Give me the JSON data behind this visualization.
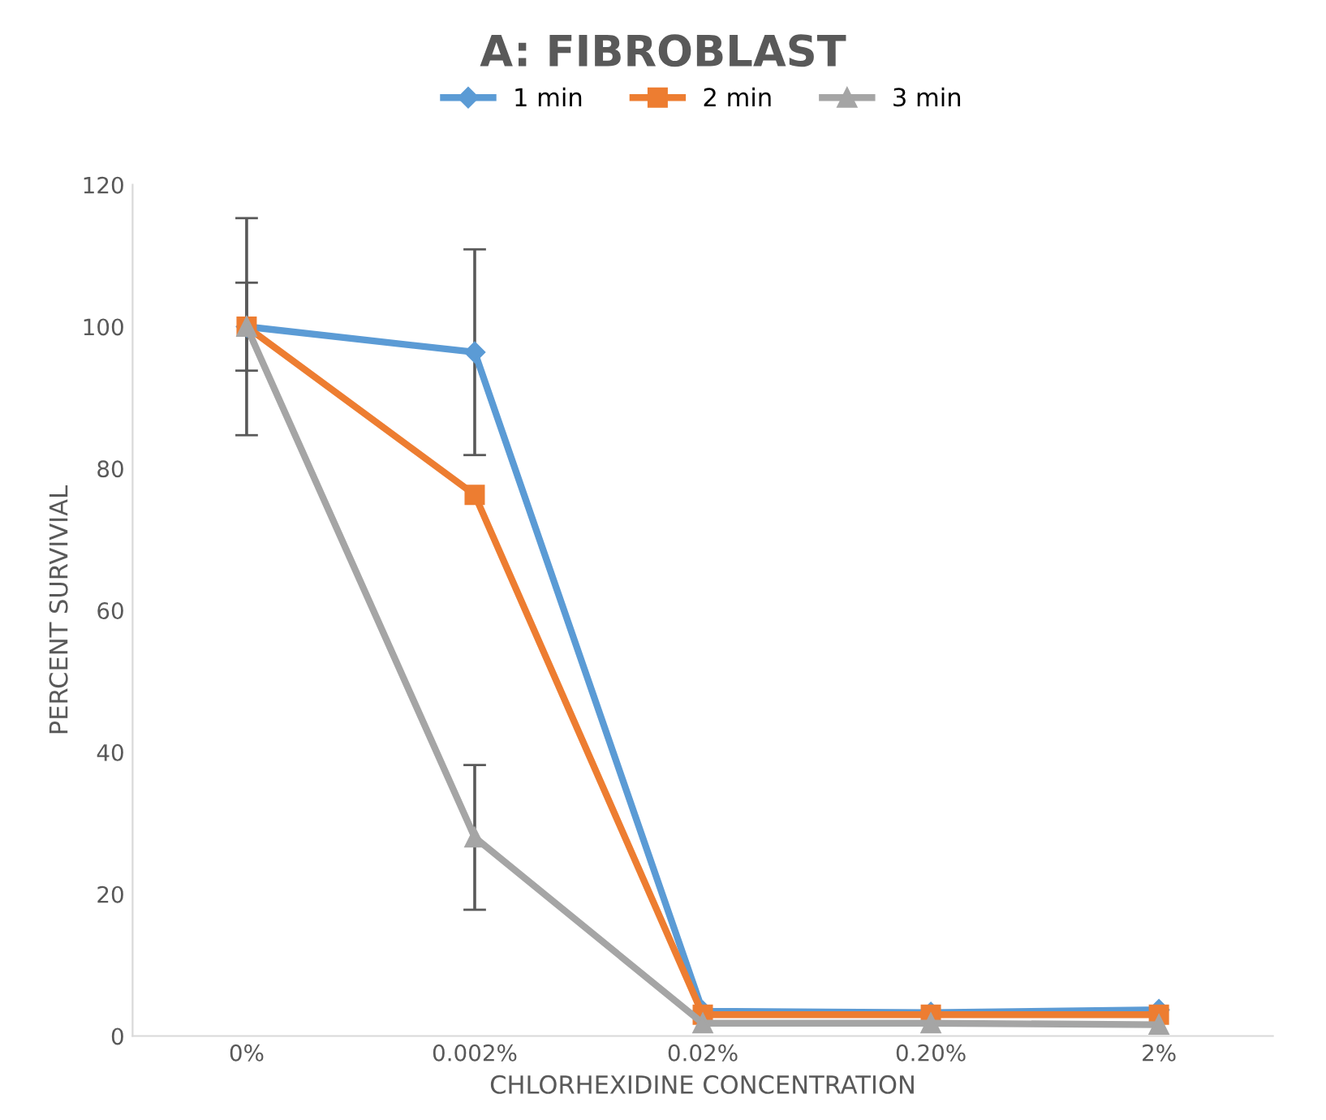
{
  "chart_data": {
    "type": "line",
    "title": "A: FIBROBLAST",
    "xlabel": "CHLORHEXIDINE CONCENTRATION",
    "ylabel": "PERCENT SURVIVIAL",
    "categories": [
      "0%",
      "0.002%",
      "0.02%",
      "0.20%",
      "2%"
    ],
    "series": [
      {
        "name": "1 min",
        "color": "#5b9bd5",
        "marker": "diamond",
        "values": [
          100,
          96.4,
          3.5,
          3.3,
          3.7
        ],
        "errors": [
          15.3,
          14.5,
          null,
          null,
          null
        ]
      },
      {
        "name": "2 min",
        "color": "#ed7d31",
        "marker": "square",
        "values": [
          100,
          76.3,
          3.0,
          3.0,
          3.0
        ],
        "errors": [
          6.2,
          null,
          null,
          null,
          null
        ]
      },
      {
        "name": "3 min",
        "color": "#a5a5a5",
        "marker": "triangle",
        "values": [
          100,
          28,
          1.8,
          1.8,
          1.6
        ],
        "errors": [
          null,
          10.2,
          null,
          null,
          null
        ]
      }
    ],
    "ylim": [
      0,
      120
    ],
    "yticks": [
      0,
      20,
      40,
      60,
      80,
      100,
      120
    ],
    "grid": false,
    "legend": "top"
  }
}
